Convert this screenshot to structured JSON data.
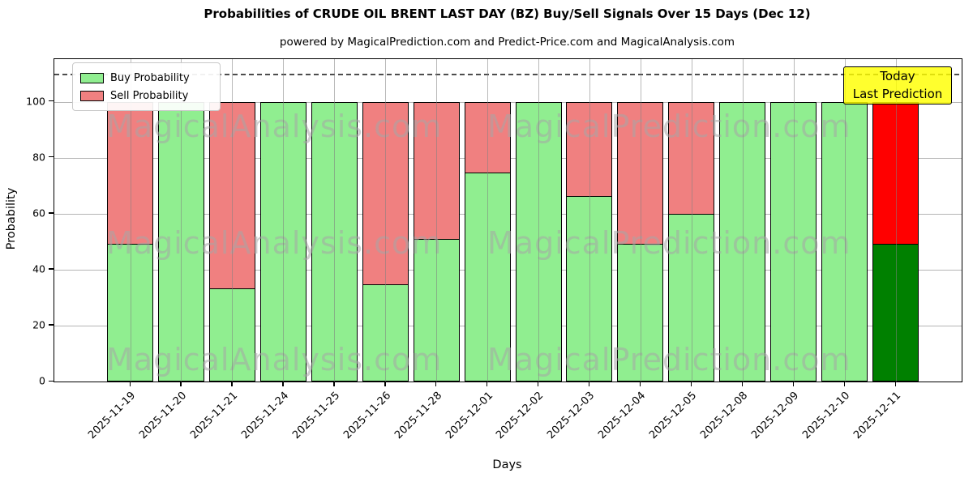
{
  "title": "Probabilities of CRUDE OIL BRENT LAST DAY (BZ) Buy/Sell Signals Over 15 Days (Dec 12)",
  "subtitle": "powered by MagicalPrediction.com and Predict-Price.com and MagicalAnalysis.com",
  "legend": {
    "items": [
      {
        "label": "Buy Probability",
        "color": "#90EE90"
      },
      {
        "label": "Sell Probability",
        "color": "#F08080"
      }
    ],
    "position": "upper-left"
  },
  "annotation": {
    "line1": "Today",
    "line2": "Last Prediction",
    "bg_color": "#FFFF00",
    "border_color": "#000000"
  },
  "watermarks": {
    "left_text": "MagicalAnalysis.com",
    "right_text": "MagicalPrediction.com"
  },
  "axes": {
    "x_label": "Days",
    "y_label": "Probability",
    "y_ticks": [
      0,
      20,
      40,
      60,
      80,
      100
    ],
    "y_max_visible": 115.2,
    "dashed_guide_y": 110,
    "grid": true
  },
  "colors": {
    "buy": "#90EE90",
    "sell": "#F08080",
    "today_buy": "#008000",
    "today_sell": "#FF0000",
    "bar_edge": "#000000",
    "grid": "#b0b0b0"
  },
  "chart_data": {
    "type": "bar",
    "stacked": true,
    "title": "Probabilities of CRUDE OIL BRENT LAST DAY (BZ) Buy/Sell Signals Over 15 Days (Dec 12)",
    "xlabel": "Days",
    "ylabel": "Probability",
    "ylim": [
      0,
      115
    ],
    "legend_position": "upper-left",
    "grid": true,
    "categories": [
      "2025-11-19",
      "2025-11-20",
      "2025-11-21",
      "2025-11-24",
      "2025-11-25",
      "2025-11-26",
      "2025-11-28",
      "2025-12-01",
      "2025-12-02",
      "2025-12-03",
      "2025-12-04",
      "2025-12-05",
      "2025-12-08",
      "2025-12-09",
      "2025-12-10",
      "2025-12-11"
    ],
    "series": [
      {
        "name": "Buy Probability",
        "color": "#90EE90",
        "values": [
          49,
          100,
          33,
          100,
          100,
          34.5,
          51,
          75,
          100,
          66.5,
          49,
          60,
          100,
          100,
          100,
          49
        ]
      },
      {
        "name": "Sell Probability",
        "color": "#F08080",
        "values": [
          51,
          0,
          67,
          0,
          0,
          65.5,
          49,
          25,
          0,
          33.5,
          51,
          40,
          0,
          0,
          0,
          51
        ]
      }
    ],
    "today_index": 15,
    "today_colors": {
      "buy": "#008000",
      "sell": "#FF0000"
    },
    "annotation_text": "Today Last Prediction"
  }
}
